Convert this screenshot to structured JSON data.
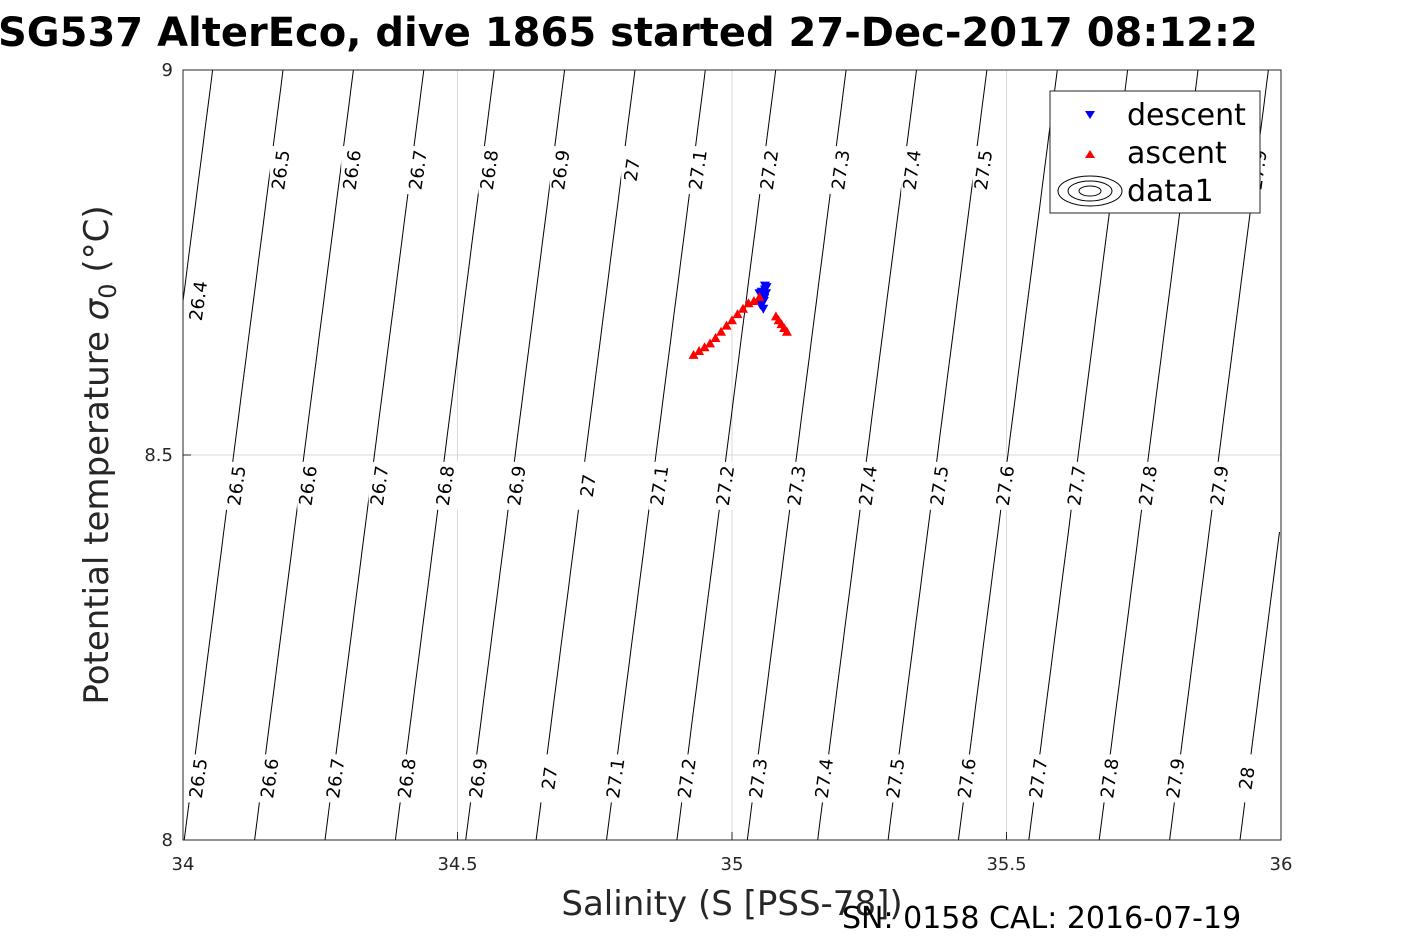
{
  "title": "SG537 AlterEco, dive 1865 started 27-Dec-2017 08:12:2",
  "footer": "SN: 0158  CAL: 2016-07-19",
  "chart_data": {
    "type": "scatter",
    "xlabel": "Salinity (S [PSS-78])",
    "ylabel_main": "Potential temperature ",
    "ylabel_sigma": "σ",
    "ylabel_sub": "0",
    "ylabel_unit": " (°C)",
    "xlim": [
      34,
      36
    ],
    "ylim": [
      8,
      9
    ],
    "xticks": [
      "34",
      "34.5",
      "35",
      "35.5",
      "36"
    ],
    "yticks": [
      "8",
      "8.5",
      "9"
    ],
    "grid": true,
    "legend_position": "top-right",
    "legend": [
      "descent",
      "ascent",
      "data1"
    ],
    "colors": {
      "descent": "#0000ff",
      "ascent": "#ff0000",
      "contour": "#000000",
      "grid": "#d9d9d9"
    },
    "contour_levels": [
      "26.4",
      "26.5",
      "26.6",
      "26.7",
      "26.8",
      "26.9",
      "27",
      "27.1",
      "27.2",
      "27.3",
      "27.4",
      "27.5",
      "27.6",
      "27.7",
      "27.8",
      "27.9",
      "28"
    ],
    "contour_labels": [
      {
        "level": "26.4",
        "s": 34.03,
        "t": 8.7
      },
      {
        "level": "26.5",
        "s": 34.18,
        "t": 8.87
      },
      {
        "level": "26.6",
        "s": 34.31,
        "t": 8.87
      },
      {
        "level": "26.7",
        "s": 34.43,
        "t": 8.87
      },
      {
        "level": "26.8",
        "s": 34.56,
        "t": 8.87
      },
      {
        "level": "26.9",
        "s": 34.69,
        "t": 8.87
      },
      {
        "level": "27",
        "s": 34.82,
        "t": 8.87
      },
      {
        "level": "27.1",
        "s": 34.94,
        "t": 8.87
      },
      {
        "level": "27.2",
        "s": 35.07,
        "t": 8.87
      },
      {
        "level": "27.3",
        "s": 35.2,
        "t": 8.87
      },
      {
        "level": "27.4",
        "s": 35.33,
        "t": 8.87
      },
      {
        "level": "27.5",
        "s": 35.46,
        "t": 8.87
      },
      {
        "level": "27.8",
        "s": 35.84,
        "t": 8.87
      },
      {
        "level": "27.9",
        "s": 35.96,
        "t": 8.87
      },
      {
        "level": "26.5",
        "s": 34.1,
        "t": 8.46
      },
      {
        "level": "26.6",
        "s": 34.23,
        "t": 8.46
      },
      {
        "level": "26.7",
        "s": 34.36,
        "t": 8.46
      },
      {
        "level": "26.8",
        "s": 34.48,
        "t": 8.46
      },
      {
        "level": "26.9",
        "s": 34.61,
        "t": 8.46
      },
      {
        "level": "27",
        "s": 34.74,
        "t": 8.46
      },
      {
        "level": "27.1",
        "s": 34.87,
        "t": 8.46
      },
      {
        "level": "27.2",
        "s": 34.99,
        "t": 8.46
      },
      {
        "level": "27.3",
        "s": 35.12,
        "t": 8.46
      },
      {
        "level": "27.4",
        "s": 35.25,
        "t": 8.46
      },
      {
        "level": "27.5",
        "s": 35.38,
        "t": 8.46
      },
      {
        "level": "27.6",
        "s": 35.5,
        "t": 8.46
      },
      {
        "level": "27.7",
        "s": 35.63,
        "t": 8.46
      },
      {
        "level": "27.8",
        "s": 35.76,
        "t": 8.46
      },
      {
        "level": "27.9",
        "s": 35.89,
        "t": 8.46
      },
      {
        "level": "26.5",
        "s": 34.03,
        "t": 8.08
      },
      {
        "level": "26.6",
        "s": 34.16,
        "t": 8.08
      },
      {
        "level": "26.7",
        "s": 34.28,
        "t": 8.08
      },
      {
        "level": "26.8",
        "s": 34.41,
        "t": 8.08
      },
      {
        "level": "26.9",
        "s": 34.54,
        "t": 8.08
      },
      {
        "level": "27",
        "s": 34.67,
        "t": 8.08
      },
      {
        "level": "27.1",
        "s": 34.79,
        "t": 8.08
      },
      {
        "level": "27.2",
        "s": 34.92,
        "t": 8.08
      },
      {
        "level": "27.3",
        "s": 35.05,
        "t": 8.08
      },
      {
        "level": "27.4",
        "s": 35.17,
        "t": 8.08
      },
      {
        "level": "27.5",
        "s": 35.3,
        "t": 8.08
      },
      {
        "level": "27.6",
        "s": 35.43,
        "t": 8.08
      },
      {
        "level": "27.7",
        "s": 35.56,
        "t": 8.08
      },
      {
        "level": "27.8",
        "s": 35.69,
        "t": 8.08
      },
      {
        "level": "27.9",
        "s": 35.81,
        "t": 8.08
      },
      {
        "level": "28",
        "s": 35.94,
        "t": 8.08
      }
    ],
    "series": [
      {
        "name": "descent",
        "marker": "triangle-down",
        "x": [
          35.05,
          35.055,
          35.06,
          35.058,
          35.062,
          35.052,
          35.057,
          35.06,
          35.054,
          35.059,
          35.063,
          35.056
        ],
        "y": [
          8.71,
          8.705,
          8.715,
          8.7,
          8.71,
          8.695,
          8.69,
          8.72,
          8.712,
          8.704,
          8.718,
          8.699
        ]
      },
      {
        "name": "ascent",
        "marker": "triangle-up",
        "x": [
          34.93,
          34.94,
          34.95,
          34.96,
          34.97,
          34.98,
          34.99,
          35.0,
          35.01,
          35.02,
          35.03,
          35.04,
          35.05,
          35.08,
          35.085,
          35.09,
          35.095,
          35.1
        ],
        "y": [
          8.63,
          8.635,
          8.64,
          8.645,
          8.652,
          8.66,
          8.668,
          8.675,
          8.683,
          8.69,
          8.697,
          8.7,
          8.705,
          8.68,
          8.675,
          8.67,
          8.665,
          8.66
        ]
      }
    ]
  }
}
